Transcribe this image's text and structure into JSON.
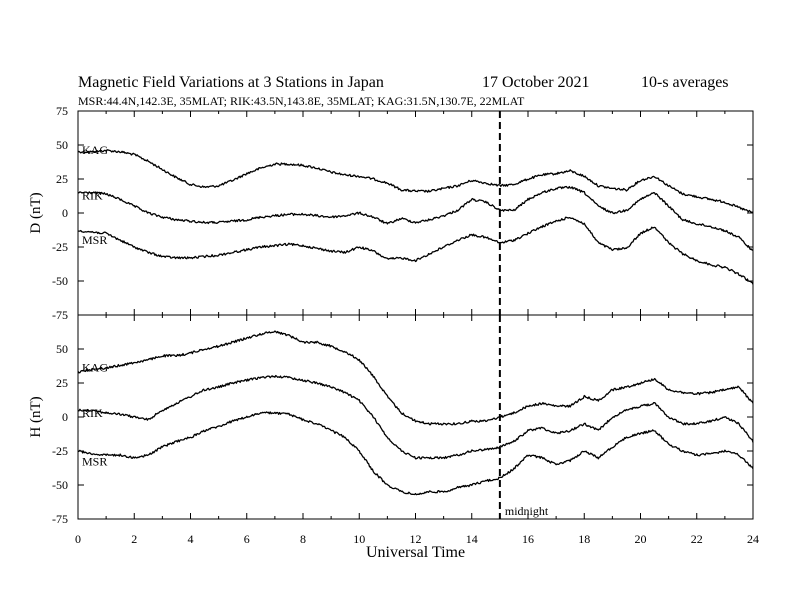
{
  "header": {
    "title": "Magnetic Field Variations at 3 Stations in Japan",
    "date": "17 October 2021",
    "averaging": "10-s averages",
    "stations": "MSR:44.4N,142.3E, 35MLAT;  RIK:43.5N,143.8E, 35MLAT;  KAG:31.5N,130.7E, 22MLAT"
  },
  "colors": {
    "line": "#000000",
    "background": "#ffffff"
  },
  "chart_data": [
    {
      "type": "line",
      "ylabel": "D (nT)",
      "xlabel": "",
      "xlim": [
        0,
        24
      ],
      "ylim": [
        -75,
        75
      ],
      "yticks": [
        75,
        50,
        25,
        0,
        -25,
        -50,
        -75
      ],
      "xticks": [],
      "grid": false,
      "marker": {
        "x": 15,
        "style": "dashed",
        "label": ""
      },
      "series": [
        {
          "name": "KAG",
          "x": [
            0,
            0.5,
            1,
            1.5,
            2,
            2.5,
            3,
            3.5,
            4,
            4.5,
            5,
            5.5,
            6,
            6.5,
            7,
            7.5,
            8,
            8.5,
            9,
            9.5,
            10,
            10.5,
            11,
            11.5,
            12,
            12.5,
            13,
            13.5,
            14,
            14.5,
            15,
            15.5,
            16,
            16.5,
            17,
            17.5,
            18,
            18.5,
            19,
            19.5,
            20,
            20.5,
            21,
            21.5,
            22,
            22.5,
            23,
            23.5,
            24
          ],
          "values": [
            45,
            45,
            46,
            45,
            43,
            38,
            32,
            26,
            21,
            19,
            20,
            24,
            29,
            33,
            36,
            36,
            35,
            33,
            30,
            28,
            27,
            25,
            22,
            17,
            16,
            16,
            18,
            20,
            24,
            22,
            20,
            21,
            25,
            28,
            29,
            31,
            27,
            20,
            18,
            17,
            24,
            27,
            20,
            14,
            12,
            10,
            8,
            4,
            0
          ]
        },
        {
          "name": "RIK",
          "x": [
            0,
            0.5,
            1,
            1.5,
            2,
            2.5,
            3,
            3.5,
            4,
            4.5,
            5,
            5.5,
            6,
            6.5,
            7,
            7.5,
            8,
            8.5,
            9,
            9.5,
            10,
            10.5,
            11,
            11.5,
            12,
            12.5,
            13,
            13.5,
            14,
            14.5,
            15,
            15.5,
            16,
            16.5,
            17,
            17.5,
            18,
            18.5,
            19,
            19.5,
            20,
            20.5,
            21,
            21.5,
            22,
            22.5,
            23,
            23.5,
            24
          ],
          "values": [
            15,
            15,
            14,
            10,
            5,
            0,
            -3,
            -5,
            -6,
            -7,
            -7,
            -6,
            -5,
            -3,
            -2,
            -1,
            -1,
            -2,
            -3,
            -2,
            0,
            -3,
            -8,
            -4,
            -7,
            -5,
            -2,
            2,
            10,
            8,
            2,
            2,
            10,
            15,
            18,
            19,
            15,
            5,
            0,
            2,
            10,
            15,
            5,
            -5,
            -8,
            -10,
            -13,
            -18,
            -28
          ]
        },
        {
          "name": "MSR",
          "x": [
            0,
            0.5,
            1,
            1.5,
            2,
            2.5,
            3,
            3.5,
            4,
            4.5,
            5,
            5.5,
            6,
            6.5,
            7,
            7.5,
            8,
            8.5,
            9,
            9.5,
            10,
            10.5,
            11,
            11.5,
            12,
            12.5,
            13,
            13.5,
            14,
            14.5,
            15,
            15.5,
            16,
            16.5,
            17,
            17.5,
            18,
            18.5,
            19,
            19.5,
            20,
            20.5,
            21,
            21.5,
            22,
            22.5,
            23,
            23.5,
            24
          ],
          "values": [
            -13,
            -14,
            -15,
            -20,
            -25,
            -29,
            -32,
            -33,
            -33,
            -32,
            -31,
            -29,
            -27,
            -25,
            -24,
            -23,
            -24,
            -26,
            -28,
            -29,
            -25,
            -28,
            -34,
            -33,
            -35,
            -30,
            -25,
            -20,
            -16,
            -18,
            -22,
            -20,
            -15,
            -10,
            -6,
            -3,
            -8,
            -22,
            -27,
            -26,
            -15,
            -10,
            -22,
            -30,
            -35,
            -38,
            -40,
            -45,
            -52
          ]
        }
      ]
    },
    {
      "type": "line",
      "ylabel": "H (nT)",
      "xlabel": "Universal Time",
      "xlim": [
        0,
        24
      ],
      "ylim": [
        -75,
        75
      ],
      "yticks": [
        50,
        25,
        0,
        -25,
        -50,
        -75
      ],
      "xticks": [
        0,
        2,
        4,
        6,
        8,
        10,
        12,
        14,
        16,
        18,
        20,
        22,
        24
      ],
      "grid": false,
      "marker": {
        "x": 15,
        "style": "dashed",
        "label": "midnight"
      },
      "series": [
        {
          "name": "KAG",
          "x": [
            0,
            0.5,
            1,
            1.5,
            2,
            2.5,
            3,
            3.5,
            4,
            4.5,
            5,
            5.5,
            6,
            6.5,
            7,
            7.5,
            8,
            8.5,
            9,
            9.5,
            10,
            10.5,
            11,
            11.5,
            12,
            12.5,
            13,
            13.5,
            14,
            14.5,
            15,
            15.5,
            16,
            16.5,
            17,
            17.5,
            18,
            18.5,
            19,
            19.5,
            20,
            20.5,
            21,
            21.5,
            22,
            22.5,
            23,
            23.5,
            24
          ],
          "values": [
            33,
            35,
            36,
            38,
            40,
            42,
            45,
            45,
            47,
            50,
            52,
            55,
            58,
            61,
            63,
            60,
            55,
            55,
            52,
            48,
            42,
            30,
            15,
            3,
            -3,
            -5,
            -5,
            -5,
            -3,
            -3,
            0,
            3,
            8,
            10,
            8,
            8,
            15,
            12,
            20,
            22,
            25,
            28,
            20,
            18,
            17,
            18,
            20,
            22,
            10
          ]
        },
        {
          "name": "RIK",
          "x": [
            0,
            0.5,
            1,
            1.5,
            2,
            2.5,
            3,
            3.5,
            4,
            4.5,
            5,
            5.5,
            6,
            6.5,
            7,
            7.5,
            8,
            8.5,
            9,
            9.5,
            10,
            10.5,
            11,
            11.5,
            12,
            12.5,
            13,
            13.5,
            14,
            14.5,
            15,
            15.5,
            16,
            16.5,
            17,
            17.5,
            18,
            18.5,
            19,
            19.5,
            20,
            20.5,
            21,
            21.5,
            22,
            22.5,
            23,
            23.5,
            24
          ],
          "values": [
            5,
            5,
            3,
            2,
            0,
            -2,
            5,
            10,
            15,
            20,
            22,
            25,
            27,
            29,
            30,
            29,
            27,
            25,
            22,
            18,
            12,
            0,
            -15,
            -25,
            -30,
            -30,
            -30,
            -28,
            -25,
            -24,
            -22,
            -18,
            -10,
            -8,
            -12,
            -10,
            -5,
            -10,
            0,
            5,
            8,
            10,
            0,
            -5,
            -5,
            -3,
            0,
            -5,
            -18
          ]
        },
        {
          "name": "MSR",
          "x": [
            0,
            0.5,
            1,
            1.5,
            2,
            2.5,
            3,
            3.5,
            4,
            4.5,
            5,
            5.5,
            6,
            6.5,
            7,
            7.5,
            8,
            8.5,
            9,
            9.5,
            10,
            10.5,
            11,
            11.5,
            12,
            12.5,
            13,
            13.5,
            14,
            14.5,
            15,
            15.5,
            16,
            16.5,
            17,
            17.5,
            18,
            18.5,
            19,
            19.5,
            20,
            20.5,
            21,
            21.5,
            22,
            22.5,
            23,
            23.5,
            24
          ],
          "values": [
            -25,
            -27,
            -28,
            -28,
            -30,
            -28,
            -22,
            -18,
            -15,
            -10,
            -7,
            -3,
            0,
            3,
            3,
            2,
            -2,
            -5,
            -10,
            -15,
            -25,
            -40,
            -50,
            -55,
            -57,
            -55,
            -55,
            -52,
            -50,
            -47,
            -45,
            -38,
            -28,
            -30,
            -35,
            -32,
            -25,
            -30,
            -22,
            -15,
            -12,
            -10,
            -20,
            -25,
            -28,
            -27,
            -25,
            -28,
            -38
          ]
        }
      ]
    }
  ]
}
